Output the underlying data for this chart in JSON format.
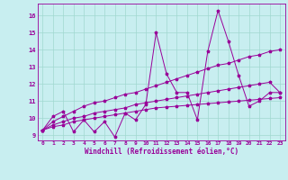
{
  "xlabel": "Windchill (Refroidissement éolien,°C)",
  "bg_color": "#c8eef0",
  "line_color": "#990099",
  "grid_color": "#a0d8d0",
  "x_data": [
    0,
    1,
    2,
    3,
    4,
    5,
    6,
    7,
    8,
    9,
    10,
    11,
    12,
    13,
    14,
    15,
    16,
    17,
    18,
    19,
    20,
    21,
    22,
    23
  ],
  "y_zigzag": [
    9.3,
    10.1,
    10.4,
    9.2,
    9.9,
    9.2,
    9.8,
    8.9,
    10.3,
    9.9,
    10.8,
    15.0,
    12.6,
    11.5,
    11.5,
    9.9,
    13.9,
    16.3,
    14.5,
    12.5,
    10.7,
    11.0,
    11.5,
    11.5
  ],
  "y_line1": [
    9.3,
    9.8,
    10.1,
    10.4,
    10.7,
    10.9,
    11.0,
    11.2,
    11.4,
    11.5,
    11.7,
    11.9,
    12.1,
    12.3,
    12.5,
    12.7,
    12.9,
    13.1,
    13.2,
    13.4,
    13.6,
    13.7,
    13.9,
    14.0
  ],
  "y_line2": [
    9.3,
    9.6,
    9.8,
    10.0,
    10.1,
    10.3,
    10.4,
    10.5,
    10.6,
    10.8,
    10.9,
    11.0,
    11.1,
    11.2,
    11.3,
    11.4,
    11.5,
    11.6,
    11.7,
    11.8,
    11.9,
    12.0,
    12.1,
    11.5
  ],
  "y_line3": [
    9.3,
    9.5,
    9.6,
    9.8,
    9.9,
    10.0,
    10.1,
    10.2,
    10.3,
    10.4,
    10.5,
    10.6,
    10.65,
    10.7,
    10.75,
    10.8,
    10.85,
    10.9,
    10.95,
    11.0,
    11.05,
    11.1,
    11.15,
    11.2
  ],
  "ylim": [
    8.7,
    16.7
  ],
  "xlim": [
    -0.5,
    23.5
  ],
  "yticks": [
    9,
    10,
    11,
    12,
    13,
    14,
    15,
    16
  ],
  "xticks": [
    0,
    1,
    2,
    3,
    4,
    5,
    6,
    7,
    8,
    9,
    10,
    11,
    12,
    13,
    14,
    15,
    16,
    17,
    18,
    19,
    20,
    21,
    22,
    23
  ]
}
